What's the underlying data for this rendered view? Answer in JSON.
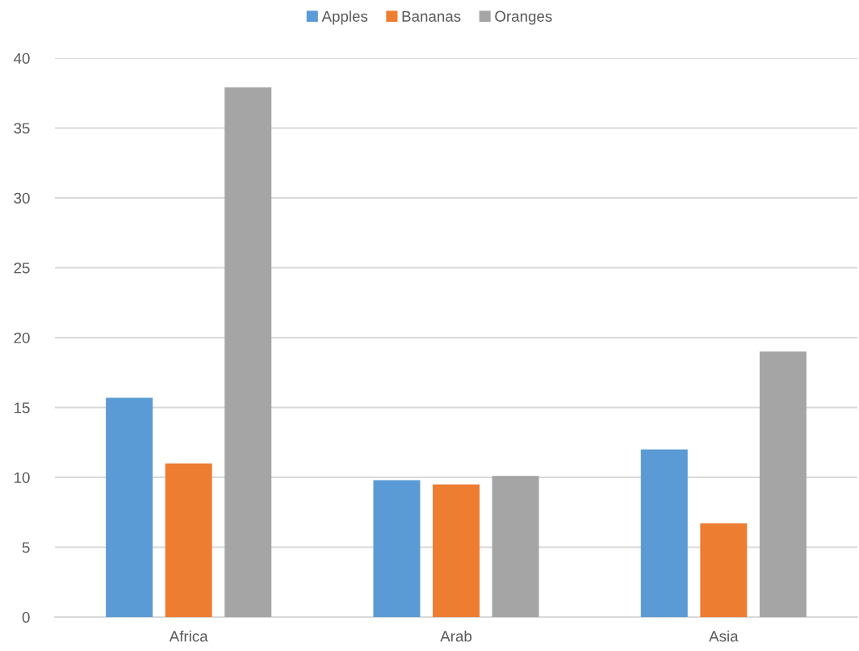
{
  "chart_data": {
    "type": "bar",
    "categories": [
      "Africa",
      "Arab",
      "Asia"
    ],
    "series": [
      {
        "name": "Apples",
        "color": "#5b9bd5",
        "values": [
          15.7,
          9.8,
          12.0
        ]
      },
      {
        "name": "Bananas",
        "color": "#ed7d31",
        "values": [
          11.0,
          9.5,
          6.7
        ]
      },
      {
        "name": "Oranges",
        "color": "#a5a5a5",
        "values": [
          37.9,
          10.1,
          19.0
        ]
      }
    ],
    "ylim": [
      0,
      40
    ],
    "yticks": [
      0,
      5,
      10,
      15,
      20,
      25,
      30,
      35,
      40
    ],
    "grid": "y",
    "legend": "top"
  }
}
